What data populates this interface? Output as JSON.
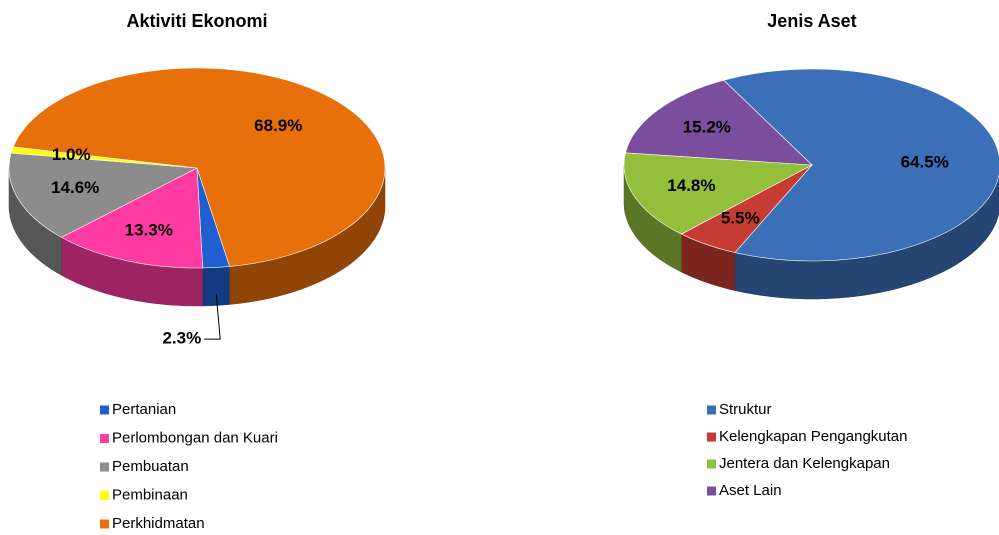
{
  "chart_data": [
    {
      "type": "pie",
      "title": "Aktiviti Ekonomi",
      "categories": [
        "Pertanian",
        "Perlombongan dan Kuari",
        "Pembuatan",
        "Pembinaan",
        "Perkhidmatan"
      ],
      "values": [
        2.3,
        13.3,
        14.6,
        1.0,
        68.9
      ],
      "value_labels": [
        "2.3%",
        "13.3%",
        "14.6%",
        "1.0%",
        "68.9%"
      ],
      "colors": [
        "#1f5fd0",
        "#ff3aa0",
        "#8c8c8c",
        "#ffff00",
        "#e8700a"
      ]
    },
    {
      "type": "pie",
      "title": "Jenis Aset",
      "categories": [
        "Struktur",
        "Kelengkapan Pengangkutan",
        "Jentera dan Kelengkapan",
        "Aset Lain"
      ],
      "values": [
        64.5,
        5.5,
        14.8,
        15.2
      ],
      "value_labels": [
        "64.5%",
        "5.5%",
        "14.8%",
        "15.2%"
      ],
      "colors": [
        "#3b70b8",
        "#c63b32",
        "#93bf3c",
        "#7a4e9c"
      ]
    }
  ]
}
